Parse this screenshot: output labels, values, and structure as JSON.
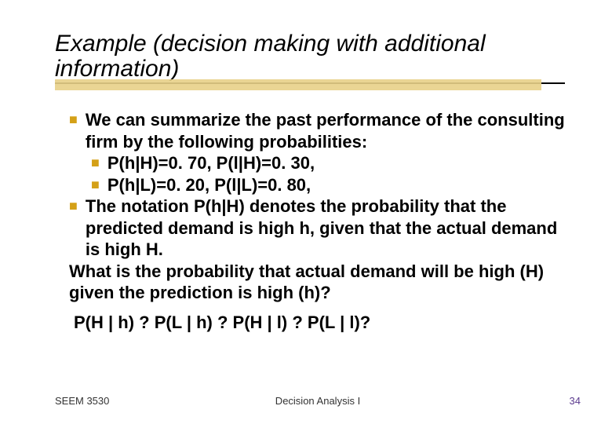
{
  "title": "Example (decision making with additional information)",
  "body": {
    "b1": "We can summarize the past performance of the consulting firm by the following probabilities:",
    "b1a": "P(h|H)=0. 70, P(l|H)=0. 30,",
    "b1b": "P(h|L)=0. 20, P(l|L)=0. 80,",
    "b2": "The notation P(h|H) denotes the probability that the predicted demand is  high h, given that the actual demand is high H.",
    "q": "What is the probability that actual demand will be high (H) given the prediction is high (h)?",
    "eq": "P(H | h) ?  P(L | h) ?     P(H | l) ? P(L | l)?"
  },
  "footer": {
    "left": "SEEM 3530",
    "center": "Decision Analysis I",
    "page": "34"
  },
  "colors": {
    "bullet": "#d4a017",
    "accent": "#e8d088",
    "pagenum": "#5b3a8e",
    "text": "#000000",
    "background": "#ffffff"
  }
}
